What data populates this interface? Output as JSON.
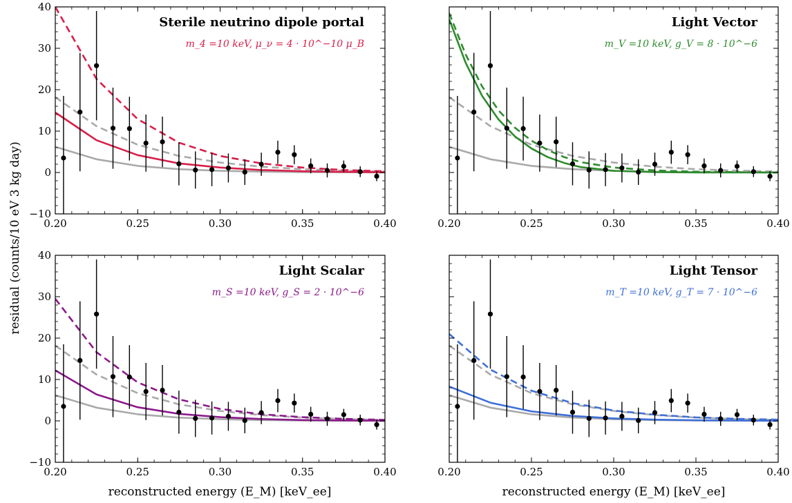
{
  "figure": {
    "ylabel": "residual (counts/10 eV 3 kg day)",
    "xlabel": "reconstructed energy (E_M) [keV_ee]",
    "reference_color": "#a9a9a9"
  },
  "chart_data": [
    {
      "type": "scatter",
      "title": "Sterile neutrino dipole portal",
      "subtitle": "m_4 =10 keV, μ_ν = 4 · 10^−10 μ_B",
      "accent_color": "#d6204b",
      "xlim": [
        0.2,
        0.4
      ],
      "ylim": [
        -10,
        40
      ],
      "xticks": [
        "0.20",
        "0.25",
        "0.30",
        "0.35",
        "0.40"
      ],
      "yticks": [
        "−10",
        "0",
        "10",
        "20",
        "30",
        "40"
      ],
      "ylabel": "",
      "xlabel": "",
      "data_points": [
        {
          "x": 0.205,
          "y": 3.5,
          "err": 15.0
        },
        {
          "x": 0.215,
          "y": 14.6,
          "err": 14.3
        },
        {
          "x": 0.225,
          "y": 25.8,
          "err": 13.2
        },
        {
          "x": 0.235,
          "y": 10.7,
          "err": 9.8
        },
        {
          "x": 0.245,
          "y": 10.6,
          "err": 7.7
        },
        {
          "x": 0.255,
          "y": 7.1,
          "err": 6.9
        },
        {
          "x": 0.265,
          "y": 7.4,
          "err": 6.1
        },
        {
          "x": 0.275,
          "y": 2.1,
          "err": 5.2
        },
        {
          "x": 0.285,
          "y": 0.6,
          "err": 4.5
        },
        {
          "x": 0.295,
          "y": 0.7,
          "err": 4.0
        },
        {
          "x": 0.305,
          "y": 1.1,
          "err": 3.5
        },
        {
          "x": 0.315,
          "y": 0.1,
          "err": 3.1
        },
        {
          "x": 0.325,
          "y": 2.0,
          "err": 2.8
        },
        {
          "x": 0.335,
          "y": 4.9,
          "err": 2.8
        },
        {
          "x": 0.345,
          "y": 4.3,
          "err": 2.3
        },
        {
          "x": 0.355,
          "y": 1.6,
          "err": 1.8
        },
        {
          "x": 0.365,
          "y": 0.5,
          "err": 1.7
        },
        {
          "x": 0.375,
          "y": 1.5,
          "err": 1.4
        },
        {
          "x": 0.385,
          "y": 0.2,
          "err": 1.3
        },
        {
          "x": 0.395,
          "y": -0.9,
          "err": 1.2
        }
      ],
      "curves": [
        {
          "style": "solid",
          "color": "#a9a9a9",
          "x": [
            0.2,
            0.225,
            0.25,
            0.275,
            0.3,
            0.325,
            0.35,
            0.375,
            0.4
          ],
          "y": [
            6.2,
            3.2,
            1.6,
            0.8,
            0.4,
            0.2,
            0.1,
            0.05,
            0.0
          ]
        },
        {
          "style": "dashed",
          "color": "#a9a9a9",
          "x": [
            0.2,
            0.225,
            0.25,
            0.275,
            0.3,
            0.325,
            0.35,
            0.375,
            0.4
          ],
          "y": [
            18.2,
            11.2,
            6.7,
            4.0,
            2.4,
            1.4,
            0.8,
            0.45,
            0.25
          ]
        },
        {
          "style": "solid",
          "color": "#d6204b",
          "x": [
            0.2,
            0.225,
            0.25,
            0.275,
            0.3,
            0.325,
            0.35,
            0.375,
            0.4
          ],
          "y": [
            14.5,
            7.8,
            4.2,
            2.2,
            1.2,
            0.6,
            0.3,
            0.15,
            0.05
          ]
        },
        {
          "style": "dashed",
          "color": "#d6204b",
          "x": [
            0.2,
            0.225,
            0.25,
            0.275,
            0.3,
            0.325,
            0.35,
            0.375,
            0.4
          ],
          "y": [
            40,
            22.6,
            12.9,
            7.2,
            4.0,
            2.2,
            1.2,
            0.6,
            0.3
          ]
        }
      ]
    },
    {
      "type": "scatter",
      "title": "Light Vector",
      "subtitle": "m_V =10 keV, g_V = 8 · 10^−6",
      "accent_color": "#2e8b2e",
      "xlim": [
        0.2,
        0.4
      ],
      "ylim": [
        -10,
        40
      ],
      "xticks": [
        "0.20",
        "0.25",
        "0.30",
        "0.35",
        "0.40"
      ],
      "yticks": [],
      "ylabel": "",
      "xlabel": "",
      "data_points": [
        {
          "x": 0.205,
          "y": 3.5,
          "err": 15.0
        },
        {
          "x": 0.215,
          "y": 14.6,
          "err": 14.3
        },
        {
          "x": 0.225,
          "y": 25.8,
          "err": 13.2
        },
        {
          "x": 0.235,
          "y": 10.7,
          "err": 9.8
        },
        {
          "x": 0.245,
          "y": 10.6,
          "err": 7.7
        },
        {
          "x": 0.255,
          "y": 7.1,
          "err": 6.9
        },
        {
          "x": 0.265,
          "y": 7.4,
          "err": 6.1
        },
        {
          "x": 0.275,
          "y": 2.1,
          "err": 5.2
        },
        {
          "x": 0.285,
          "y": 0.6,
          "err": 4.5
        },
        {
          "x": 0.295,
          "y": 0.7,
          "err": 4.0
        },
        {
          "x": 0.305,
          "y": 1.1,
          "err": 3.5
        },
        {
          "x": 0.315,
          "y": 0.1,
          "err": 3.1
        },
        {
          "x": 0.325,
          "y": 2.0,
          "err": 2.8
        },
        {
          "x": 0.335,
          "y": 4.9,
          "err": 2.8
        },
        {
          "x": 0.345,
          "y": 4.3,
          "err": 2.3
        },
        {
          "x": 0.355,
          "y": 1.6,
          "err": 1.8
        },
        {
          "x": 0.365,
          "y": 0.5,
          "err": 1.7
        },
        {
          "x": 0.375,
          "y": 1.5,
          "err": 1.4
        },
        {
          "x": 0.385,
          "y": 0.2,
          "err": 1.3
        },
        {
          "x": 0.395,
          "y": -0.9,
          "err": 1.2
        }
      ],
      "curves": [
        {
          "style": "solid",
          "color": "#a9a9a9",
          "x": [
            0.2,
            0.225,
            0.25,
            0.275,
            0.3,
            0.325,
            0.35,
            0.375,
            0.4
          ],
          "y": [
            6.2,
            3.2,
            1.6,
            0.8,
            0.4,
            0.2,
            0.1,
            0.05,
            0.0
          ]
        },
        {
          "style": "dashed",
          "color": "#a9a9a9",
          "x": [
            0.2,
            0.225,
            0.25,
            0.275,
            0.3,
            0.325,
            0.35,
            0.375,
            0.4
          ],
          "y": [
            18.2,
            11.2,
            6.7,
            4.0,
            2.4,
            1.4,
            0.8,
            0.45,
            0.25
          ]
        },
        {
          "style": "solid",
          "color": "#2e8b2e",
          "x": [
            0.2,
            0.21,
            0.22,
            0.23,
            0.24,
            0.25,
            0.26,
            0.27,
            0.28,
            0.3,
            0.325,
            0.35,
            0.375,
            0.4
          ],
          "y": [
            37,
            26.5,
            18.5,
            12.8,
            8.7,
            5.8,
            3.7,
            2.3,
            1.3,
            0.4,
            0.1,
            0.0,
            0.0,
            0.0
          ]
        },
        {
          "style": "dashed",
          "color": "#2e8b2e",
          "x": [
            0.2,
            0.21,
            0.22,
            0.23,
            0.24,
            0.25,
            0.26,
            0.27,
            0.28,
            0.3,
            0.325,
            0.35,
            0.375,
            0.4
          ],
          "y": [
            38.5,
            28.5,
            20.8,
            15.0,
            10.8,
            7.7,
            5.4,
            3.7,
            2.5,
            1.2,
            0.5,
            0.2,
            0.1,
            0.0
          ]
        }
      ]
    },
    {
      "type": "scatter",
      "title": "Light Scalar",
      "subtitle": "m_S =10 keV, g_S = 2 · 10^−6",
      "accent_color": "#8b1a8b",
      "xlim": [
        0.2,
        0.4
      ],
      "ylim": [
        -10,
        40
      ],
      "xticks": [
        "0.20",
        "0.25",
        "0.30",
        "0.35",
        "0.40"
      ],
      "yticks": [
        "−10",
        "0",
        "10",
        "20",
        "30",
        "40"
      ],
      "ylabel": "",
      "xlabel": "reconstructed energy (E_M) [keV_ee]",
      "data_points": [
        {
          "x": 0.205,
          "y": 3.5,
          "err": 15.0
        },
        {
          "x": 0.215,
          "y": 14.6,
          "err": 14.3
        },
        {
          "x": 0.225,
          "y": 25.8,
          "err": 13.2
        },
        {
          "x": 0.235,
          "y": 10.7,
          "err": 9.8
        },
        {
          "x": 0.245,
          "y": 10.6,
          "err": 7.7
        },
        {
          "x": 0.255,
          "y": 7.1,
          "err": 6.9
        },
        {
          "x": 0.265,
          "y": 7.4,
          "err": 6.1
        },
        {
          "x": 0.275,
          "y": 2.1,
          "err": 5.2
        },
        {
          "x": 0.285,
          "y": 0.6,
          "err": 4.5
        },
        {
          "x": 0.295,
          "y": 0.7,
          "err": 4.0
        },
        {
          "x": 0.305,
          "y": 1.1,
          "err": 3.5
        },
        {
          "x": 0.315,
          "y": 0.1,
          "err": 3.1
        },
        {
          "x": 0.325,
          "y": 2.0,
          "err": 2.8
        },
        {
          "x": 0.335,
          "y": 4.9,
          "err": 2.8
        },
        {
          "x": 0.345,
          "y": 4.3,
          "err": 2.3
        },
        {
          "x": 0.355,
          "y": 1.6,
          "err": 1.8
        },
        {
          "x": 0.365,
          "y": 0.5,
          "err": 1.7
        },
        {
          "x": 0.375,
          "y": 1.5,
          "err": 1.4
        },
        {
          "x": 0.385,
          "y": 0.2,
          "err": 1.3
        },
        {
          "x": 0.395,
          "y": -0.9,
          "err": 1.2
        }
      ],
      "curves": [
        {
          "style": "solid",
          "color": "#a9a9a9",
          "x": [
            0.2,
            0.225,
            0.25,
            0.275,
            0.3,
            0.325,
            0.35,
            0.375,
            0.4
          ],
          "y": [
            6.2,
            3.2,
            1.6,
            0.8,
            0.4,
            0.2,
            0.1,
            0.05,
            0.0
          ]
        },
        {
          "style": "dashed",
          "color": "#a9a9a9",
          "x": [
            0.2,
            0.225,
            0.25,
            0.275,
            0.3,
            0.325,
            0.35,
            0.375,
            0.4
          ],
          "y": [
            18.2,
            11.2,
            6.7,
            4.0,
            2.4,
            1.4,
            0.8,
            0.45,
            0.25
          ]
        },
        {
          "style": "solid",
          "color": "#8b1a8b",
          "x": [
            0.2,
            0.225,
            0.25,
            0.275,
            0.3,
            0.325,
            0.35,
            0.375,
            0.4
          ],
          "y": [
            12.2,
            6.4,
            3.3,
            1.7,
            0.9,
            0.45,
            0.2,
            0.1,
            0.05
          ]
        },
        {
          "style": "dashed",
          "color": "#8b1a8b",
          "x": [
            0.2,
            0.225,
            0.25,
            0.275,
            0.3,
            0.325,
            0.35,
            0.375,
            0.4
          ],
          "y": [
            29.5,
            16.6,
            9.3,
            5.2,
            2.9,
            1.6,
            0.9,
            0.5,
            0.25
          ]
        }
      ]
    },
    {
      "type": "scatter",
      "title": "Light Tensor",
      "subtitle": "m_T =10 keV, g_T = 7 · 10^−6",
      "accent_color": "#3f6fd8",
      "xlim": [
        0.2,
        0.4
      ],
      "ylim": [
        -10,
        40
      ],
      "xticks": [
        "0.20",
        "0.25",
        "0.30",
        "0.35",
        "0.40"
      ],
      "yticks": [],
      "ylabel": "",
      "xlabel": "reconstructed energy (E_M) [keV_ee]",
      "data_points": [
        {
          "x": 0.205,
          "y": 3.5,
          "err": 15.0
        },
        {
          "x": 0.215,
          "y": 14.6,
          "err": 14.3
        },
        {
          "x": 0.225,
          "y": 25.8,
          "err": 13.2
        },
        {
          "x": 0.235,
          "y": 10.7,
          "err": 9.8
        },
        {
          "x": 0.245,
          "y": 10.6,
          "err": 7.7
        },
        {
          "x": 0.255,
          "y": 7.1,
          "err": 6.9
        },
        {
          "x": 0.265,
          "y": 7.4,
          "err": 6.1
        },
        {
          "x": 0.275,
          "y": 2.1,
          "err": 5.2
        },
        {
          "x": 0.285,
          "y": 0.6,
          "err": 4.5
        },
        {
          "x": 0.295,
          "y": 0.7,
          "err": 4.0
        },
        {
          "x": 0.305,
          "y": 1.1,
          "err": 3.5
        },
        {
          "x": 0.315,
          "y": 0.1,
          "err": 3.1
        },
        {
          "x": 0.325,
          "y": 2.0,
          "err": 2.8
        },
        {
          "x": 0.335,
          "y": 4.9,
          "err": 2.8
        },
        {
          "x": 0.345,
          "y": 4.3,
          "err": 2.3
        },
        {
          "x": 0.355,
          "y": 1.6,
          "err": 1.8
        },
        {
          "x": 0.365,
          "y": 0.5,
          "err": 1.7
        },
        {
          "x": 0.375,
          "y": 1.5,
          "err": 1.4
        },
        {
          "x": 0.385,
          "y": 0.2,
          "err": 1.3
        },
        {
          "x": 0.395,
          "y": -0.9,
          "err": 1.2
        }
      ],
      "curves": [
        {
          "style": "solid",
          "color": "#a9a9a9",
          "x": [
            0.2,
            0.225,
            0.25,
            0.275,
            0.3,
            0.325,
            0.35,
            0.375,
            0.4
          ],
          "y": [
            6.2,
            3.2,
            1.6,
            0.8,
            0.4,
            0.2,
            0.1,
            0.05,
            0.0
          ]
        },
        {
          "style": "dashed",
          "color": "#a9a9a9",
          "x": [
            0.2,
            0.225,
            0.25,
            0.275,
            0.3,
            0.325,
            0.35,
            0.375,
            0.4
          ],
          "y": [
            18.2,
            11.2,
            6.7,
            4.0,
            2.4,
            1.4,
            0.8,
            0.45,
            0.25
          ]
        },
        {
          "style": "solid",
          "color": "#3f6fd8",
          "x": [
            0.2,
            0.225,
            0.25,
            0.275,
            0.3,
            0.325,
            0.35,
            0.375,
            0.4
          ],
          "y": [
            8.3,
            4.4,
            2.3,
            1.2,
            0.6,
            0.3,
            0.15,
            0.08,
            0.04
          ]
        },
        {
          "style": "dashed",
          "color": "#3f6fd8",
          "x": [
            0.2,
            0.225,
            0.25,
            0.275,
            0.3,
            0.325,
            0.35,
            0.375,
            0.4
          ],
          "y": [
            21.0,
            12.4,
            7.3,
            4.3,
            2.5,
            1.5,
            0.85,
            0.5,
            0.3
          ]
        }
      ]
    }
  ]
}
